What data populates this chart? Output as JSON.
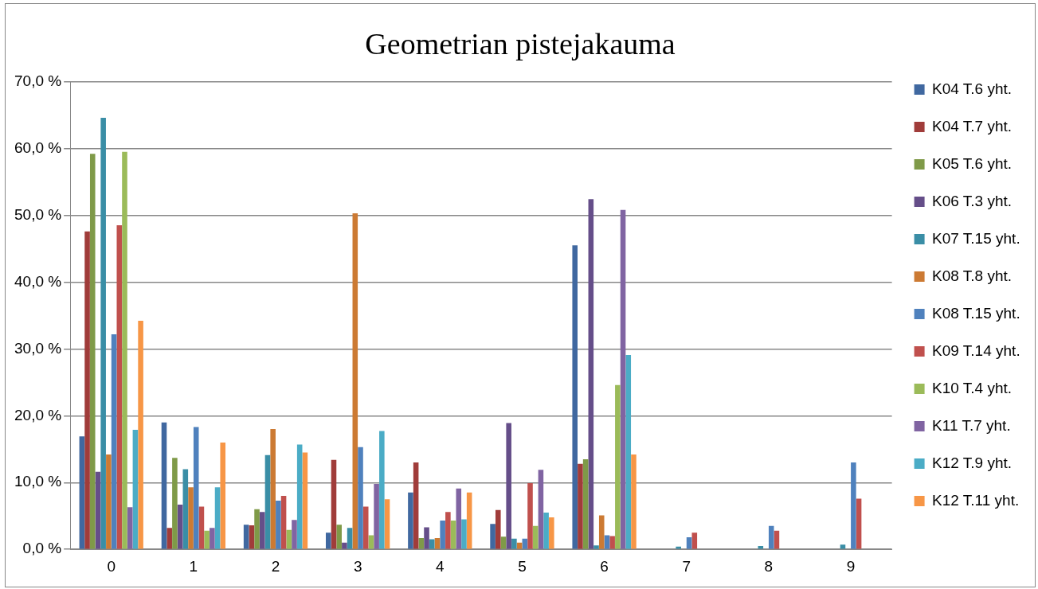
{
  "chart_data": {
    "type": "bar",
    "title": "Geometrian pistejakauma",
    "categories": [
      "0",
      "1",
      "2",
      "3",
      "4",
      "5",
      "6",
      "7",
      "8",
      "9"
    ],
    "series": [
      {
        "name": "K04 T.6 yht.",
        "color": "#4068a0",
        "values": [
          16.9,
          19.0,
          3.7,
          2.5,
          8.5,
          3.8,
          45.5,
          0,
          0,
          0
        ]
      },
      {
        "name": "K04 T.7 yht.",
        "color": "#a03c3a",
        "values": [
          47.6,
          3.2,
          3.6,
          13.4,
          13.0,
          5.9,
          12.8,
          0,
          0,
          0
        ]
      },
      {
        "name": "K05 T.6 yht.",
        "color": "#7f9a48",
        "values": [
          59.2,
          13.7,
          6.0,
          3.7,
          1.7,
          1.9,
          13.5,
          0,
          0,
          0
        ]
      },
      {
        "name": "K06 T.3 yht.",
        "color": "#654e89",
        "values": [
          11.6,
          6.7,
          5.6,
          1.0,
          3.3,
          18.9,
          52.4,
          0,
          0,
          0
        ]
      },
      {
        "name": "K07 T.15 yht.",
        "color": "#3a8ea6",
        "values": [
          64.6,
          12.0,
          14.1,
          3.2,
          1.5,
          1.6,
          0.6,
          0.4,
          0.5,
          0.7
        ]
      },
      {
        "name": "K08 T.8 yht.",
        "color": "#cc7a33",
        "values": [
          14.2,
          9.3,
          18.0,
          50.3,
          1.7,
          1.0,
          5.1,
          0,
          0,
          0
        ]
      },
      {
        "name": "K08 T.15 yht.",
        "color": "#4f81bd",
        "values": [
          32.2,
          18.3,
          7.3,
          15.3,
          4.3,
          1.6,
          2.1,
          1.8,
          3.5,
          13.0
        ]
      },
      {
        "name": "K09 T.14 yht.",
        "color": "#c0504d",
        "values": [
          48.5,
          6.4,
          8.0,
          6.4,
          5.6,
          9.9,
          2.0,
          2.5,
          2.8,
          7.6
        ]
      },
      {
        "name": "K10 T.4 yht.",
        "color": "#9bbb59",
        "values": [
          59.5,
          2.8,
          2.9,
          2.1,
          4.3,
          3.5,
          24.6,
          0,
          0,
          0
        ]
      },
      {
        "name": "K11 T.7 yht.",
        "color": "#8064a2",
        "values": [
          6.3,
          3.2,
          4.4,
          9.8,
          9.1,
          11.9,
          50.8,
          0,
          0,
          0
        ]
      },
      {
        "name": "K12 T.9 yht.",
        "color": "#4bacc6",
        "values": [
          17.9,
          9.3,
          15.7,
          17.7,
          4.5,
          5.5,
          29.1,
          0,
          0,
          0
        ]
      },
      {
        "name": "K12 T.11 yht.",
        "color": "#f79646",
        "values": [
          34.2,
          16.0,
          14.5,
          7.5,
          8.5,
          4.8,
          14.2,
          0,
          0,
          0
        ]
      }
    ],
    "ylim": [
      0,
      70
    ],
    "yticks": [
      {
        "value": 0,
        "label": "0,0 %"
      },
      {
        "value": 10,
        "label": "10,0 %"
      },
      {
        "value": 20,
        "label": "20,0 %"
      },
      {
        "value": 30,
        "label": "30,0 %"
      },
      {
        "value": 40,
        "label": "40,0 %"
      },
      {
        "value": 50,
        "label": "50,0 %"
      },
      {
        "value": 60,
        "label": "60,0 %"
      },
      {
        "value": 70,
        "label": "70,0 %"
      }
    ],
    "grid": "y",
    "legend": "right"
  }
}
